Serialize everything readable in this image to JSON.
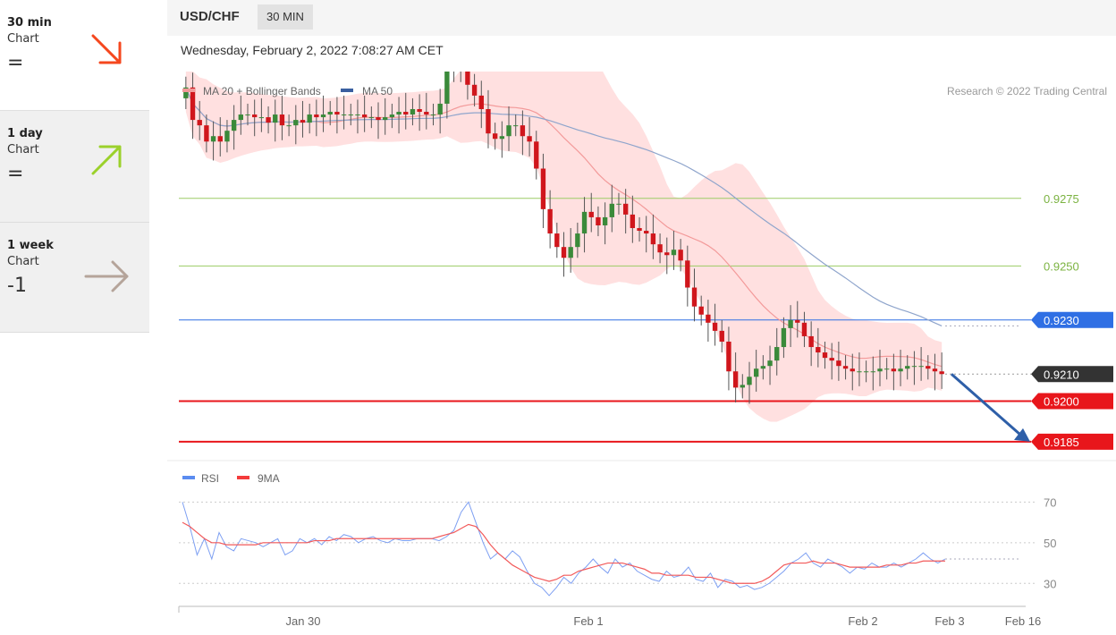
{
  "sidebar": {
    "items": [
      {
        "period": "30 min",
        "type": "Chart",
        "value": "=",
        "arrow": "down",
        "color": "#f5471e"
      },
      {
        "period": "1 day",
        "type": "Chart",
        "value": "=",
        "arrow": "up",
        "color": "#9bd12b"
      },
      {
        "period": "1 week",
        "type": "Chart",
        "value": "-1",
        "arrow": "flat",
        "color": "#b5a49a"
      }
    ]
  },
  "header": {
    "pair": "USD/CHF",
    "timeframe": "30 MIN"
  },
  "datetime": "Wednesday, February 2, 2022 7:08:27 AM CET",
  "chart_data": [
    {
      "type": "candlestick",
      "title": "USD/CHF",
      "legend": [
        {
          "name": "MA 20 + Bollinger Bands",
          "color": "#f19a9a"
        },
        {
          "name": "MA 50",
          "color": "#3a5fa0"
        }
      ],
      "credit": "Research © 2022 Trading Central",
      "x_ticks": [
        "Jan 30",
        "Feb 1",
        "Feb 2",
        "Feb 3",
        "Feb 16"
      ],
      "ylim": [
        0.9178,
        0.9308
      ],
      "levels": [
        {
          "label": "0.9275",
          "value": 0.9275,
          "style": "green-line",
          "color": "#9ccc65"
        },
        {
          "label": "0.9250",
          "value": 0.925,
          "style": "green-line",
          "color": "#9ccc65"
        },
        {
          "label": "0.9230",
          "value": 0.923,
          "style": "blue-tag",
          "color": "#2f6fe4"
        },
        {
          "label": "0.9210",
          "value": 0.921,
          "style": "dark-tag",
          "color": "#333333"
        },
        {
          "label": "0.9200",
          "value": 0.92,
          "style": "red-tag",
          "color": "#e8161b"
        },
        {
          "label": "0.9185",
          "value": 0.9185,
          "style": "red-tag",
          "color": "#e8161b"
        }
      ],
      "forecast_arrow": {
        "from": 0.921,
        "to": 0.9185,
        "color": "#2e5fa8"
      },
      "close": [
        0.9316,
        0.9304,
        0.9302,
        0.9296,
        0.9298,
        0.9296,
        0.93,
        0.9304,
        0.9306,
        0.9306,
        0.9305,
        0.9305,
        0.9303,
        0.9306,
        0.9302,
        0.9302,
        0.9304,
        0.9303,
        0.9306,
        0.9305,
        0.9306,
        0.9307,
        0.9306,
        0.9306,
        0.9306,
        0.9306,
        0.9305,
        0.9305,
        0.9304,
        0.9305,
        0.9306,
        0.9307,
        0.9306,
        0.9308,
        0.9307,
        0.9306,
        0.9306,
        0.931,
        0.9322,
        0.9327,
        0.9325,
        0.9317,
        0.9313,
        0.9308,
        0.9299,
        0.9297,
        0.9298,
        0.9302,
        0.9302,
        0.9298,
        0.9296,
        0.9286,
        0.9271,
        0.9262,
        0.9257,
        0.9253,
        0.9257,
        0.9262,
        0.927,
        0.9268,
        0.9265,
        0.9268,
        0.9273,
        0.9273,
        0.9269,
        0.9264,
        0.9263,
        0.9262,
        0.9258,
        0.9255,
        0.9254,
        0.9256,
        0.9252,
        0.9242,
        0.9235,
        0.9232,
        0.9229,
        0.9226,
        0.9222,
        0.9211,
        0.9205,
        0.9206,
        0.9209,
        0.9212,
        0.9213,
        0.9215,
        0.922,
        0.9227,
        0.923,
        0.9229,
        0.9224,
        0.922,
        0.9218,
        0.9216,
        0.9215,
        0.9213,
        0.9212,
        0.9211,
        0.9211,
        0.9211,
        0.9211,
        0.9212,
        0.9212,
        0.9211,
        0.9212,
        0.9213,
        0.9213,
        0.9213,
        0.9212,
        0.9211,
        0.921
      ],
      "rsi": {
        "ylim": [
          20,
          75
        ],
        "ticks": [
          70,
          50,
          30
        ],
        "legend": [
          {
            "name": "RSI",
            "color": "#5b8cf0"
          },
          {
            "name": "9MA",
            "color": "#f43b3b"
          }
        ],
        "rsi_values": [
          70,
          58,
          44,
          52,
          42,
          55,
          48,
          46,
          52,
          51,
          50,
          48,
          50,
          52,
          44,
          46,
          52,
          50,
          52,
          49,
          53,
          51,
          54,
          53,
          50,
          52,
          53,
          51,
          50,
          52,
          51,
          51,
          52,
          52,
          52,
          51,
          53,
          56,
          65,
          70,
          60,
          50,
          42,
          45,
          42,
          46,
          43,
          36,
          30,
          28,
          24,
          28,
          33,
          30,
          35,
          38,
          42,
          38,
          35,
          42,
          38,
          40,
          36,
          34,
          32,
          31,
          36,
          33,
          34,
          38,
          32,
          31,
          35,
          28,
          32,
          31,
          28,
          29,
          27,
          28,
          30,
          33,
          36,
          40,
          42,
          45,
          40,
          38,
          42,
          40,
          38,
          35,
          38,
          37,
          40,
          38,
          38,
          40,
          38,
          40,
          42,
          45,
          42,
          40,
          42
        ],
        "ma_values": [
          60,
          58,
          55,
          52,
          50,
          50,
          49,
          49,
          49,
          49,
          49,
          50,
          50,
          50,
          50,
          50,
          50,
          50,
          51,
          51,
          51,
          52,
          52,
          52,
          52,
          52,
          52,
          52,
          52,
          52,
          52,
          52,
          52,
          52,
          52,
          53,
          54,
          55,
          57,
          59,
          58,
          54,
          49,
          45,
          42,
          39,
          37,
          35,
          33,
          32,
          31,
          32,
          34,
          34,
          36,
          37,
          38,
          39,
          40,
          40,
          40,
          39,
          38,
          37,
          35,
          35,
          34,
          34,
          34,
          34,
          33,
          33,
          33,
          32,
          31,
          30,
          30,
          30,
          30,
          31,
          33,
          36,
          39,
          40,
          40,
          40,
          41,
          40,
          40,
          40,
          39,
          38,
          38,
          38,
          38,
          38,
          39,
          39,
          39,
          40,
          40,
          41,
          41,
          41,
          41
        ]
      }
    }
  ]
}
